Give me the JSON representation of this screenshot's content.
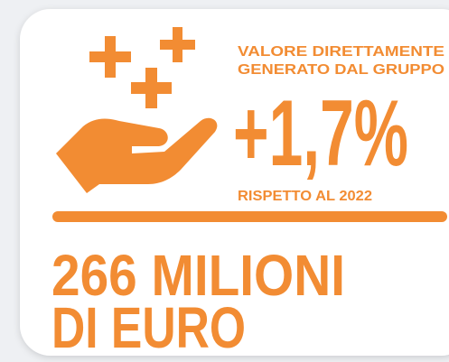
{
  "heading": [
    "VALORE DIRETTAMENTE",
    "GENERATO DAL GRUPPO"
  ],
  "change": "+1,7%",
  "comparison": "RISPETTO AL 2022",
  "amount": [
    "266 MILIONI",
    "DI EURO"
  ]
}
